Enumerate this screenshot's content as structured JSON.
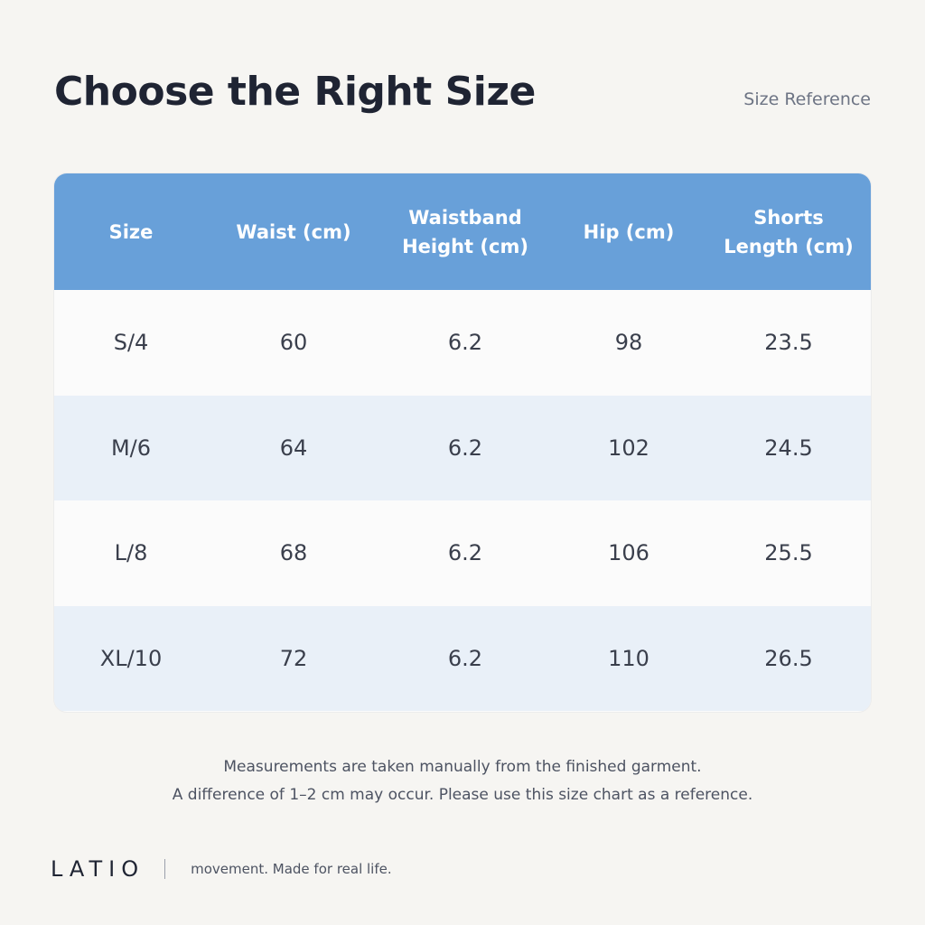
{
  "title": "Choose the Right Size",
  "subtitle": "Size Reference",
  "table": {
    "headers": [
      "Size",
      "Waist (cm)",
      "Waistband Height (cm)",
      "Hip (cm)",
      "Shorts Length (cm)"
    ],
    "rows": [
      [
        "S/4",
        "60",
        "6.2",
        "98",
        "23.5"
      ],
      [
        "M/6",
        "64",
        "6.2",
        "102",
        "24.5"
      ],
      [
        "L/8",
        "68",
        "6.2",
        "106",
        "25.5"
      ],
      [
        "XL/10",
        "72",
        "6.2",
        "110",
        "26.5"
      ]
    ]
  },
  "notes": {
    "line1": "Measurements are taken manually from the finished garment.",
    "line2": "A difference of 1–2 cm may occur. Please use this size chart as a reference."
  },
  "brand": {
    "logo": "LATIO",
    "tagline": "movement. Made for real life."
  },
  "colors": {
    "header_bg": "#68a0d9",
    "row_alt_bg": "#e9f0f8",
    "page_bg": "#f6f5f2"
  }
}
